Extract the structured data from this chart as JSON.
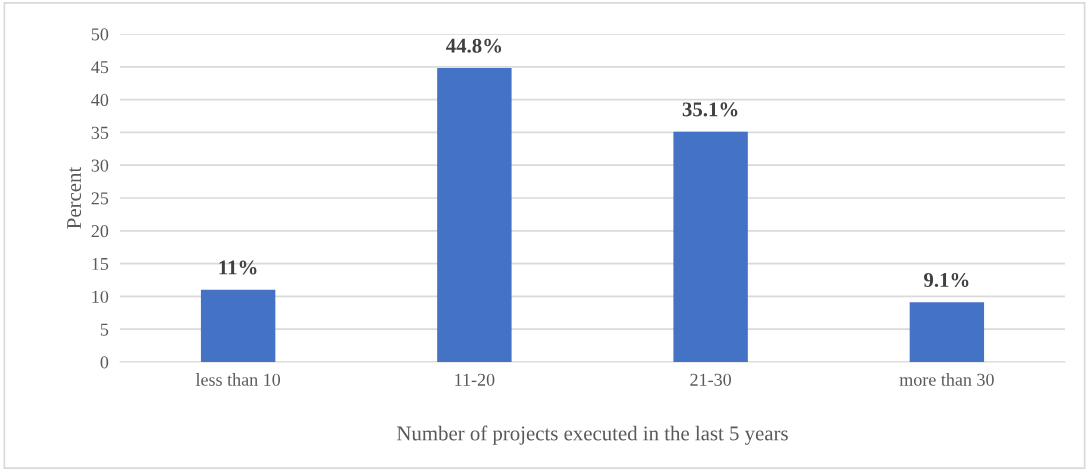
{
  "chart_data": {
    "type": "bar",
    "xlabel": "Number of projects executed in the last 5 years",
    "ylabel": "Percent",
    "categories": [
      "less than 10",
      "11-20",
      "21-30",
      "more than 30"
    ],
    "values": [
      11,
      44.8,
      35.1,
      9.1
    ],
    "value_labels": [
      "11%",
      "44.8%",
      "35.1%",
      "9.1%"
    ],
    "color": "#4472c4",
    "ylim": [
      0,
      50
    ],
    "yticks": [
      0,
      5,
      10,
      15,
      20,
      25,
      30,
      35,
      40,
      45,
      50
    ],
    "grid": "y"
  }
}
